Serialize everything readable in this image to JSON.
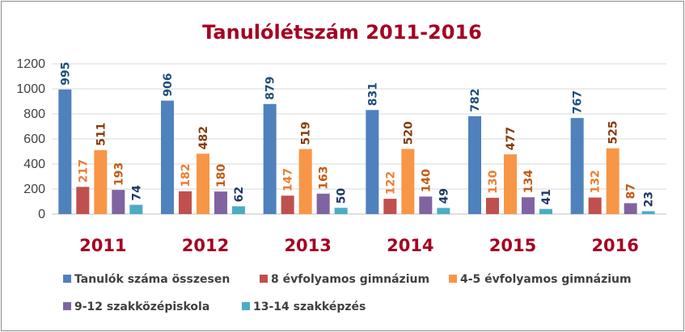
{
  "chart_data": {
    "type": "bar",
    "title": "Tanulólétszám 2011-2016",
    "categories": [
      "2011",
      "2012",
      "2013",
      "2014",
      "2015",
      "2016"
    ],
    "ylim": [
      0,
      1200
    ],
    "yticks": [
      "0",
      "200",
      "400",
      "600",
      "800",
      "1000",
      "1200"
    ],
    "grid": true,
    "legend_placement": "bottom",
    "series": [
      {
        "name": "Tanulók száma összesen",
        "color": "#4f81bd",
        "label_color": "#1f4e79",
        "values": [
          995,
          906,
          879,
          831,
          782,
          767
        ]
      },
      {
        "name": "8 évfolyamos gimnázium",
        "color": "#c0504d",
        "label_color": "#ee7d31",
        "values": [
          217,
          182,
          147,
          122,
          130,
          132
        ]
      },
      {
        "name": "4-5 évfolyamos gimnázium",
        "color": "#f79646",
        "label_color": "#843c0c",
        "values": [
          511,
          482,
          519,
          520,
          477,
          525
        ]
      },
      {
        "name": "9-12 szakközépiskola",
        "color": "#8064a2",
        "label_color": "#c55a11",
        "values": [
          193,
          180,
          163,
          140,
          134,
          87
        ]
      },
      {
        "name": "13-14 szakképzés",
        "color": "#4bacc6",
        "label_color": "#1f3864",
        "values": [
          74,
          62,
          50,
          49,
          41,
          23
        ]
      }
    ]
  }
}
